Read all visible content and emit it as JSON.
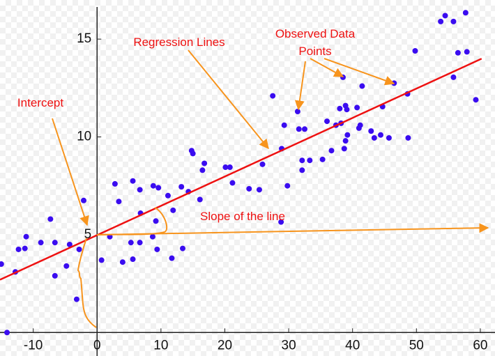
{
  "chart_data": {
    "type": "scatter",
    "xlim": [
      -15.2,
      62.3
    ],
    "ylim": [
      -1.2,
      17.0
    ],
    "xticks": [
      -10,
      0,
      10,
      20,
      30,
      40,
      50,
      60
    ],
    "yticks": [
      5,
      10,
      15
    ],
    "points": {
      "color": "#3a0cf0",
      "x": [
        -14.1,
        -15.0,
        -12.8,
        -12.3,
        -11.3,
        -11.1,
        -8.8,
        -7.3,
        -6.6,
        -6.6,
        -4.8,
        -4.3,
        -3.2,
        -2.8,
        -2.1,
        0.7,
        2.0,
        2.8,
        3.4,
        4.0,
        5.3,
        5.6,
        5.6,
        6.7,
        6.7,
        6.8,
        8.7,
        8.8,
        9.2,
        9.6,
        9.4,
        11.1,
        11.7,
        11.9,
        13.2,
        13.4,
        14.3,
        14.8,
        15.0,
        16.1,
        16.5,
        16.8,
        20.1,
        20.8,
        21.2,
        23.8,
        25.4,
        25.9,
        27.5,
        28.8,
        28.9,
        29.3,
        29.8,
        31.4,
        31.6,
        32.1,
        32.1,
        32.5,
        33.3,
        35.3,
        36.0,
        36.7,
        37.4,
        38.0,
        38.2,
        38.5,
        38.7,
        38.9,
        38.9,
        39.1,
        39.2,
        40.7,
        41.0,
        41.2,
        41.5,
        42.9,
        43.4,
        44.4,
        44.7,
        45.7,
        46.5,
        48.6,
        48.7,
        49.8,
        53.8,
        54.5,
        55.8,
        55.8,
        56.5,
        57.7,
        57.9,
        59.3
      ],
      "y": [
        0.0,
        3.5,
        3.1,
        4.25,
        4.3,
        4.9,
        4.6,
        5.8,
        4.6,
        2.9,
        3.4,
        4.5,
        1.7,
        4.25,
        6.75,
        3.7,
        4.9,
        7.6,
        6.7,
        3.6,
        4.6,
        7.75,
        3.75,
        4.6,
        7.3,
        6.1,
        4.9,
        7.5,
        5.7,
        7.4,
        4.25,
        7.0,
        3.8,
        6.25,
        7.45,
        4.3,
        7.2,
        9.3,
        9.15,
        6.8,
        8.3,
        8.65,
        8.45,
        8.45,
        7.65,
        7.35,
        7.3,
        8.6,
        12.1,
        5.65,
        9.4,
        10.6,
        7.5,
        11.3,
        10.4,
        8.8,
        8.3,
        10.4,
        8.8,
        8.85,
        10.8,
        9.3,
        10.6,
        11.45,
        10.7,
        13.05,
        9.4,
        11.6,
        9.8,
        11.4,
        10.1,
        11.5,
        10.45,
        10.6,
        12.6,
        10.3,
        9.95,
        10.1,
        11.55,
        9.95,
        12.75,
        12.2,
        9.95,
        14.4,
        15.9,
        16.2,
        15.9,
        13.05,
        14.3,
        16.35,
        14.35,
        11.9
      ]
    },
    "regression_line": {
      "color": "#ee1111",
      "x": [
        -15.2,
        60.2
      ],
      "y": [
        2.7,
        14.0
      ]
    },
    "annotations": {
      "regression": "Regression Lines",
      "observed": [
        "Observed Data",
        "Points"
      ],
      "intercept": "Intercept",
      "slope": "Slope of the line"
    }
  }
}
